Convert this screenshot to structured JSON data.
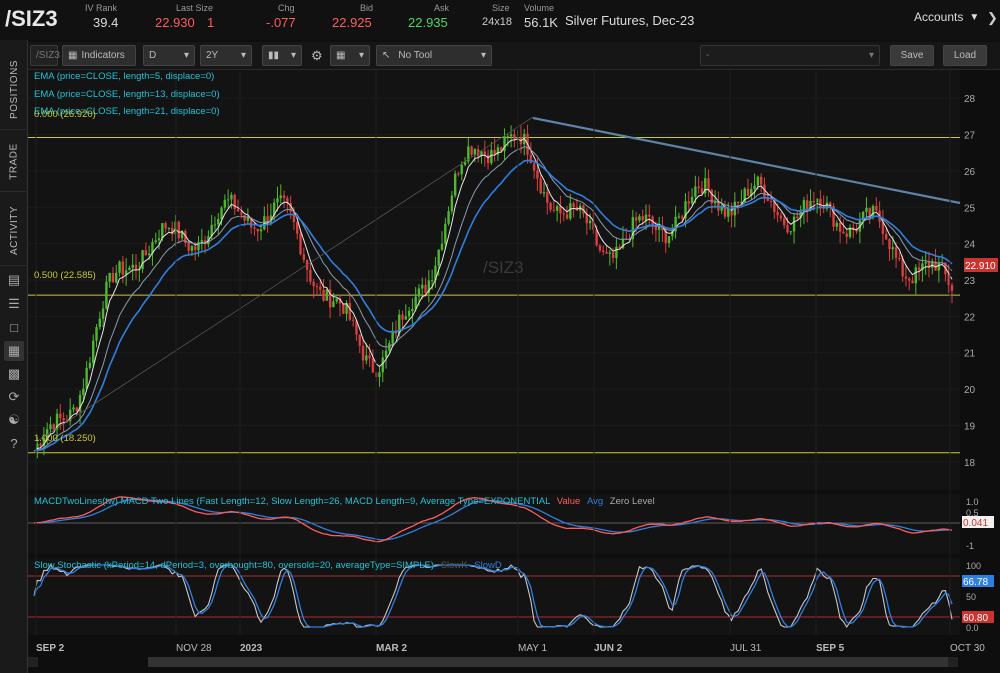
{
  "quote": {
    "symbol": "/SIZ3",
    "iv_rank_label": "IV Rank",
    "iv_rank": "39.4",
    "last_size_label": "Last Size",
    "last": "22.930",
    "last_size": "1",
    "chg_label": "Chg",
    "chg": "-.077",
    "bid_label": "Bid",
    "bid": "22.925",
    "ask_label": "Ask",
    "ask": "22.935",
    "size_label": "Size",
    "size": "24x18",
    "volume_label": "Volume",
    "volume": "56.1K",
    "description": "Silver Futures, Dec-23",
    "accounts_label": "Accounts"
  },
  "sidebar": {
    "tabs": [
      "POSITIONS",
      "TRADE",
      "ACTIVITY"
    ],
    "icons": [
      "list-icon",
      "menu-icon",
      "clipboard-icon",
      "chart-icon",
      "grid-icon",
      "refresh-icon",
      "people-icon",
      "help-icon"
    ]
  },
  "toolbar": {
    "symbol_value": "/SIZ3",
    "indicators_label": "Indicators",
    "interval": "D",
    "range": "2Y",
    "tool": "No Tool",
    "dash": "-",
    "save_label": "Save",
    "load_label": "Load"
  },
  "price_panel": {
    "watermark": "/SIZ3",
    "ema_labels": [
      "EMA (price=CLOSE, length=5, displace=0)",
      "EMA (price=CLOSE, length=13, displace=0)",
      "EMA (price=CLOSE, length=21, displace=0)"
    ],
    "fib_labels": [
      "0.000 (26.920)",
      "0.500 (22.585)",
      "1.000 (18.250)"
    ],
    "fib_levels": [
      26.92,
      22.585,
      18.25
    ],
    "y_ticks": [
      "28",
      "27",
      "26",
      "25",
      "24",
      "23",
      "22",
      "21",
      "20",
      "19",
      "18"
    ],
    "last_price_tag": "22.910",
    "colors": {
      "ema5": "#e6e6e6",
      "ema13": "#8a9bb0",
      "ema21": "#2f7fe0",
      "up": "#4fb82c",
      "down": "#d93f3f",
      "fib": "#c9c93a",
      "trend": "#5b84a8"
    }
  },
  "macd_panel": {
    "title": "MACDTwoLines(tw) MACD Two Lines (Fast Length=12, Slow Length=26, MACD Length=9, Average Type=EXPONENTIAL",
    "legend": [
      "Value",
      "Avg",
      "Zero Level"
    ],
    "y_ticks": [
      "1.0",
      "0.5",
      "-1"
    ],
    "value_tag": "0.041"
  },
  "stoch_panel": {
    "title": "Slow Stochastic (kPeriod=14, dPeriod=3, overbought=80, oversold=20, averageType=SIMPLE)",
    "legend": [
      "SlowK",
      "SlowD"
    ],
    "y_ticks": [
      "100",
      "50",
      "0.0"
    ],
    "value_tags": [
      "66.78",
      "60.80"
    ]
  },
  "x_axis": {
    "labels": [
      "SEP 2",
      "NOV 28",
      "2023",
      "MAR 2",
      "MAY 1",
      "JUN 2",
      "JUL 31",
      "SEP 5",
      "OCT 30"
    ]
  },
  "chart_data": {
    "type": "line",
    "series": [
      {
        "x": [
          "SEP 2",
          "NOV 28",
          "2023",
          "MAR 2",
          "MAY 1",
          "JUN 2",
          "JUL 31",
          "SEP 5",
          "OCT 30"
        ],
        "values": [
          18.3,
          24.0,
          24.9,
          21.0,
          26.9,
          24.0,
          25.3,
          24.8,
          22.9
        ]
      }
    ],
    "ylim": [
      17.5,
      28.5
    ]
  }
}
